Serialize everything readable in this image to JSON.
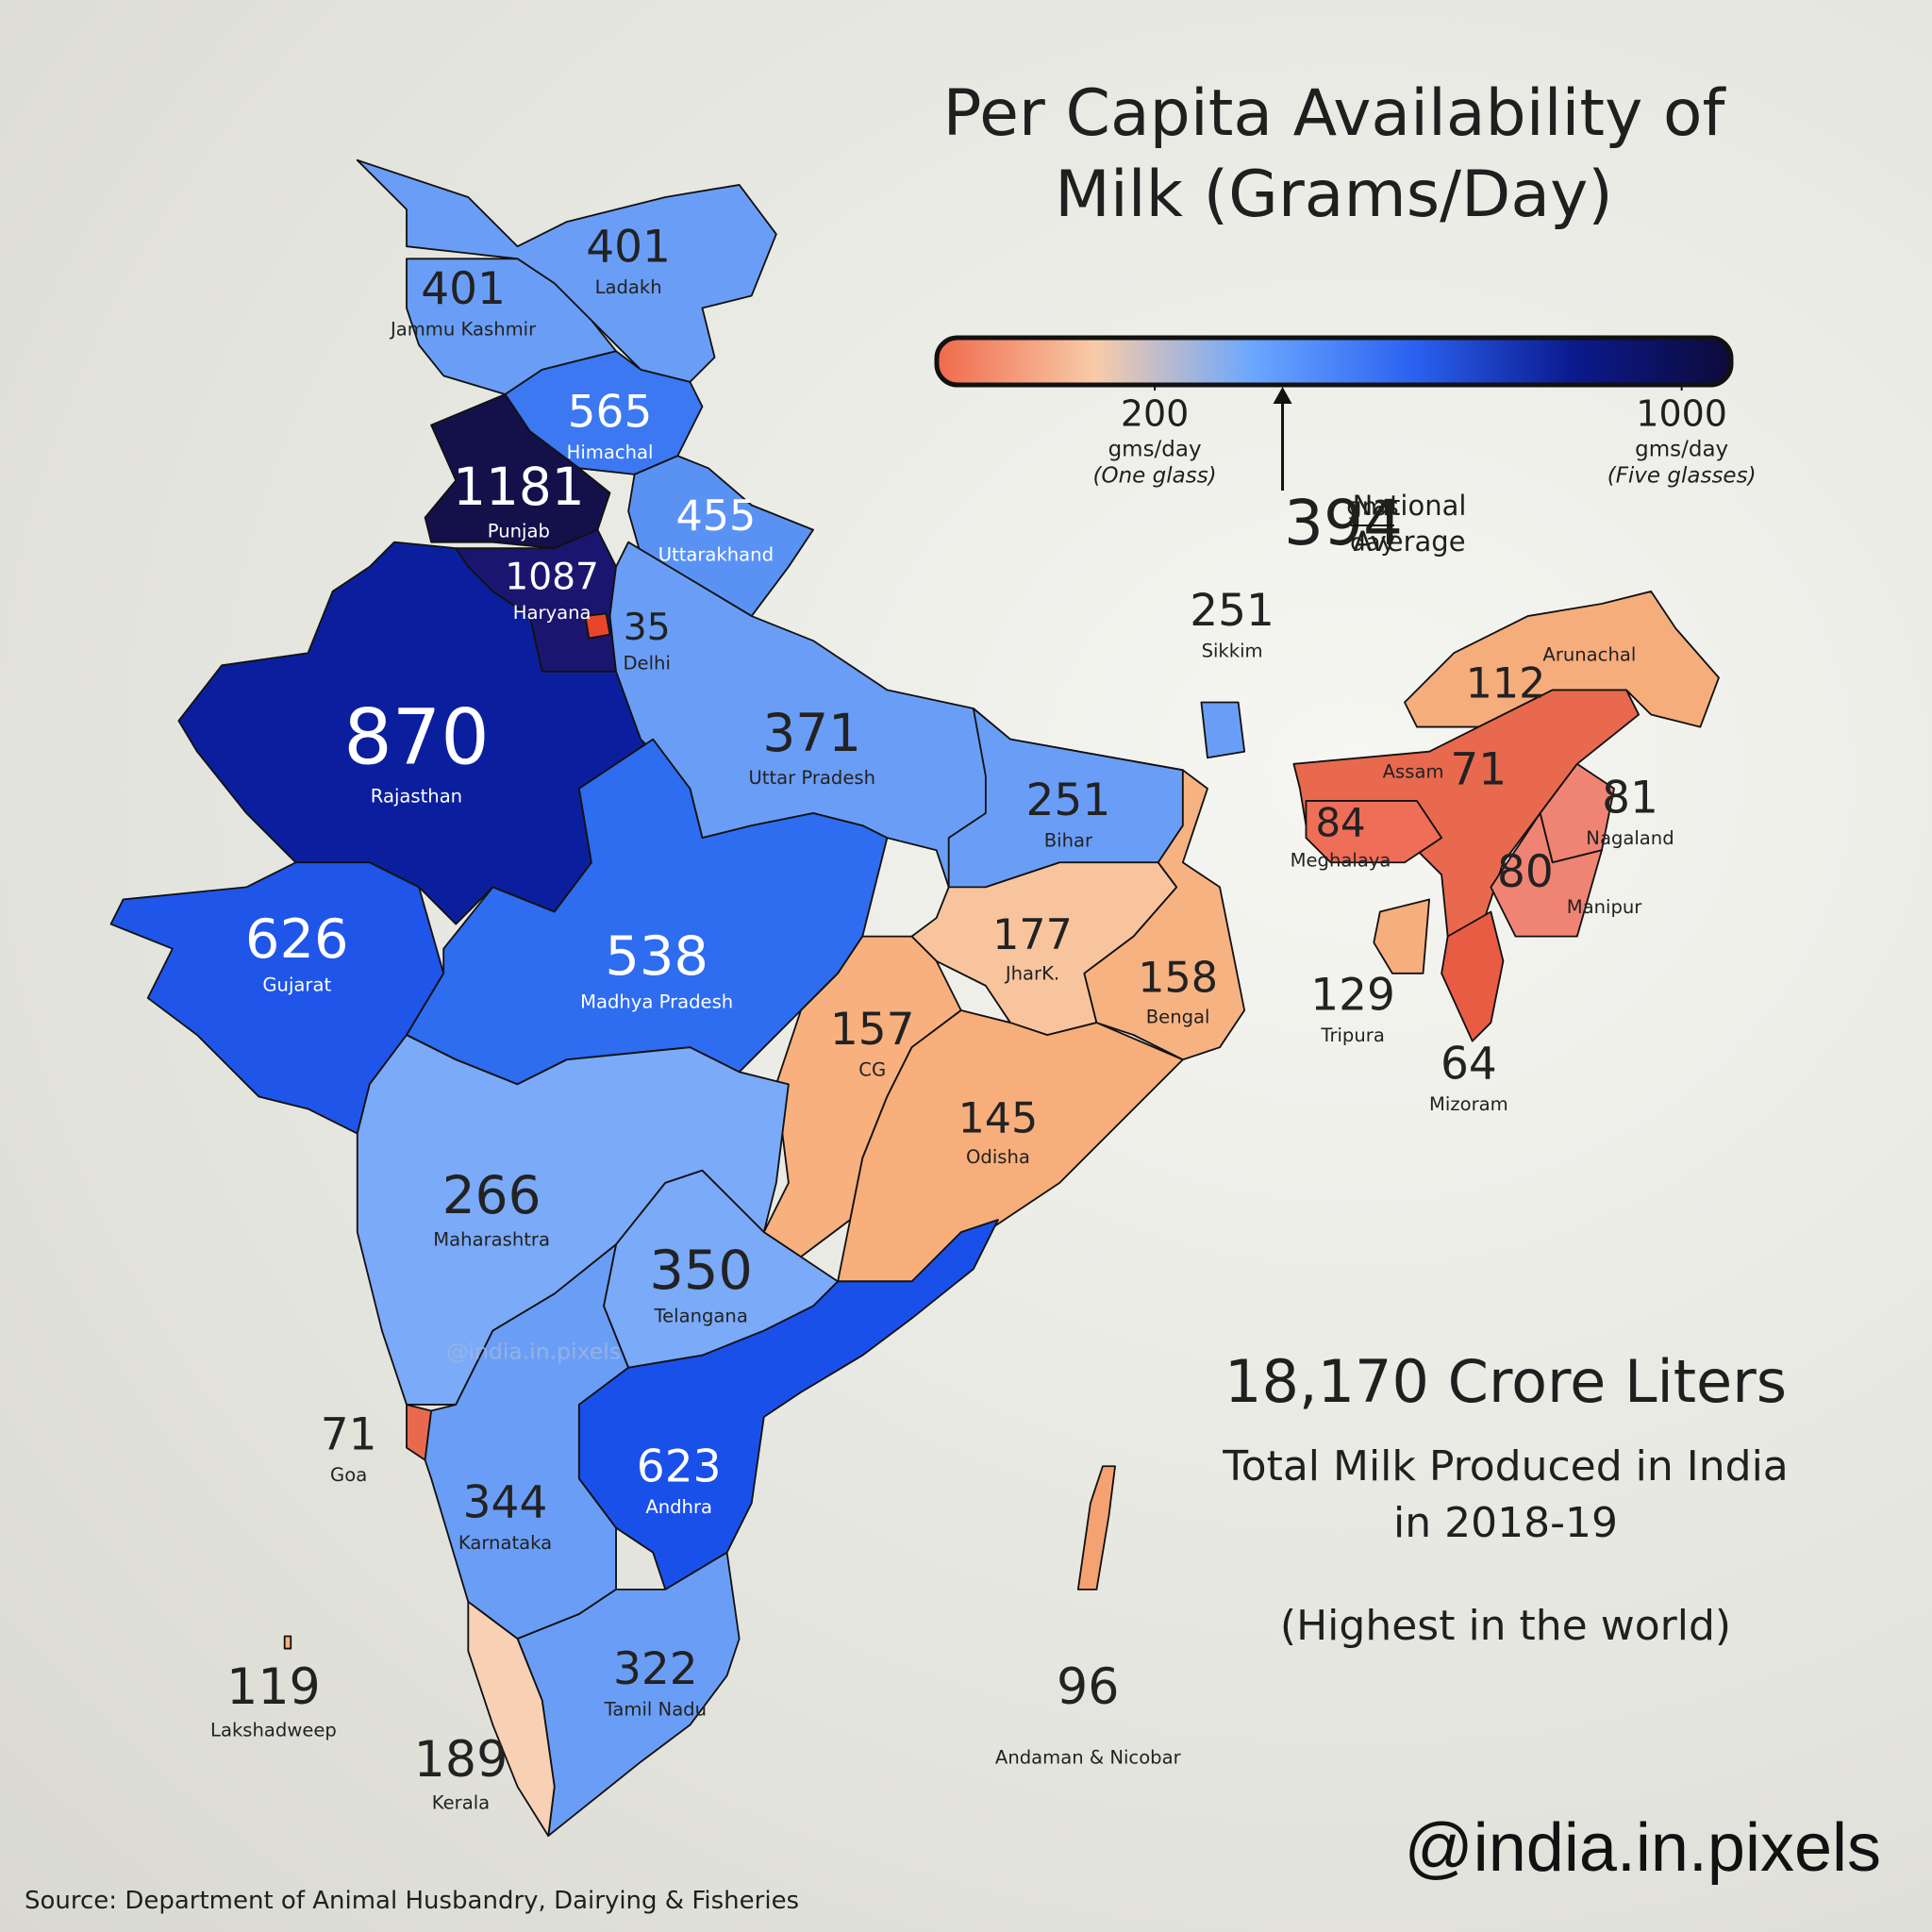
{
  "title": "Per Capita Availability of Milk (Grams/Day)",
  "colorbar": {
    "colors": [
      "#f06a4c",
      "#f8cba8",
      "#6aa6ff",
      "#2a62f0",
      "#0b1a8e",
      "#0d0a3a"
    ],
    "lim": [
      -131,
      1075
    ],
    "ticks": [
      200,
      1000
    ],
    "tick_units": [
      "gms/day",
      "gms/day"
    ],
    "tick_notes": [
      "(One glass)",
      "(Five glasses)"
    ]
  },
  "national_average": {
    "value": 394,
    "unit_top": "gms",
    "unit_bottom": "day",
    "label": [
      "National",
      "Average"
    ]
  },
  "states": [
    {
      "name": "Ladakh",
      "value": 401,
      "color": "#6a9ef6"
    },
    {
      "name": "Jammu Kashmir",
      "value": 401,
      "color": "#6a9ef6"
    },
    {
      "name": "Himachal",
      "value": 565,
      "color": "#3b78f2"
    },
    {
      "name": "Punjab",
      "value": 1181,
      "color": "#14104a"
    },
    {
      "name": "Uttarakhand",
      "value": 455,
      "color": "#5a92f4"
    },
    {
      "name": "Haryana",
      "value": 1087,
      "color": "#1a1670"
    },
    {
      "name": "Delhi",
      "value": 35,
      "color": "#e8452a"
    },
    {
      "name": "Rajasthan",
      "value": 870,
      "color": "#0b1f9e"
    },
    {
      "name": "Uttar Pradesh",
      "value": 371,
      "color": "#6a9ef6"
    },
    {
      "name": "Bihar",
      "value": 251,
      "color": "#6a9ef6"
    },
    {
      "name": "Sikkim",
      "value": 251,
      "color": "#6a9ef6"
    },
    {
      "name": "Arunachal",
      "value": 112,
      "color": "#f6ad7c"
    },
    {
      "name": "Assam",
      "value": 71,
      "color": "#e8694e"
    },
    {
      "name": "Meghalaya",
      "value": 84,
      "color": "#ee6e58"
    },
    {
      "name": "Nagaland",
      "value": 81,
      "color": "#f08474"
    },
    {
      "name": "Manipur",
      "value": 80,
      "color": "#f08474"
    },
    {
      "name": "Tripura",
      "value": 129,
      "color": "#f6ae7e"
    },
    {
      "name": "Mizoram",
      "value": 64,
      "color": "#e85c44"
    },
    {
      "name": "Gujarat",
      "value": 626,
      "color": "#1f55e8"
    },
    {
      "name": "Madhya Pradesh",
      "value": 538,
      "color": "#2e6cf0"
    },
    {
      "name": "JharK.",
      "value": 177,
      "color": "#f8c49e"
    },
    {
      "name": "Bengal",
      "value": 158,
      "color": "#f7b282"
    },
    {
      "name": "CG",
      "value": 157,
      "color": "#f7b07e"
    },
    {
      "name": "Odisha",
      "value": 145,
      "color": "#f7ae7a"
    },
    {
      "name": "Maharashtra",
      "value": 266,
      "color": "#7aaaf8"
    },
    {
      "name": "Telangana",
      "value": 350,
      "color": "#7aaaf8"
    },
    {
      "name": "Goa",
      "value": 71,
      "color": "#e8694e"
    },
    {
      "name": "Karnataka",
      "value": 344,
      "color": "#6a9ef6"
    },
    {
      "name": "Andhra",
      "value": 623,
      "color": "#1a50ea"
    },
    {
      "name": "Lakshadweep",
      "value": 119,
      "color": "#f7b282"
    },
    {
      "name": "Tamil Nadu",
      "value": 322,
      "color": "#6a9ef6"
    },
    {
      "name": "Kerala",
      "value": 189,
      "color": "#f8d0b4"
    },
    {
      "name": "Andaman & Nicobar",
      "value": 96,
      "color": "#f4a272"
    }
  ],
  "watermark": "@india.in.pixels",
  "total": {
    "headline": "18,170 Crore Liters",
    "text": "Total Milk Produced in India in 2018-19",
    "note": "(Highest in the world)"
  },
  "handle": "@india.in.pixels",
  "source": "Source: Department of Animal Husbandry, Dairying & Fisheries"
}
